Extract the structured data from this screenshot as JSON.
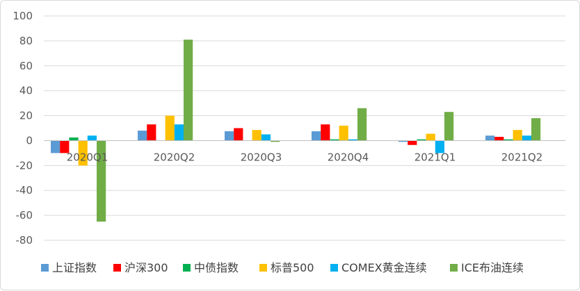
{
  "chart_data": {
    "type": "bar",
    "title": "",
    "xlabel": "",
    "ylabel": "",
    "categories": [
      "2020Q1",
      "2020Q2",
      "2020Q3",
      "2020Q4",
      "2021Q1",
      "2021Q2"
    ],
    "ylim": [
      -80,
      100
    ],
    "yticks": [
      100,
      80,
      60,
      40,
      20,
      0,
      -20,
      -40,
      -60,
      -80
    ],
    "grid": true,
    "legend_position": "bottom",
    "series": [
      {
        "name": "上证指数",
        "color": "#5B9BD5",
        "values": [
          -10,
          8,
          7.5,
          7.5,
          -1,
          4
        ]
      },
      {
        "name": "沪深300",
        "color": "#FF0000",
        "values": [
          -10,
          13,
          10,
          13,
          -3.5,
          3
        ]
      },
      {
        "name": "中债指数",
        "color": "#00B050",
        "values": [
          2.5,
          0,
          0,
          1,
          1,
          1
        ]
      },
      {
        "name": "标普500",
        "color": "#FFC000",
        "values": [
          -20,
          20,
          8.5,
          12,
          5.5,
          8.5
        ]
      },
      {
        "name": "COMEX黄金连续",
        "color": "#00B0F0",
        "values": [
          4,
          13,
          5,
          1,
          -10,
          4
        ]
      },
      {
        "name": "ICE布油连续",
        "color": "#70AD47",
        "values": [
          -65,
          81,
          -1,
          26,
          23,
          18
        ]
      }
    ]
  }
}
